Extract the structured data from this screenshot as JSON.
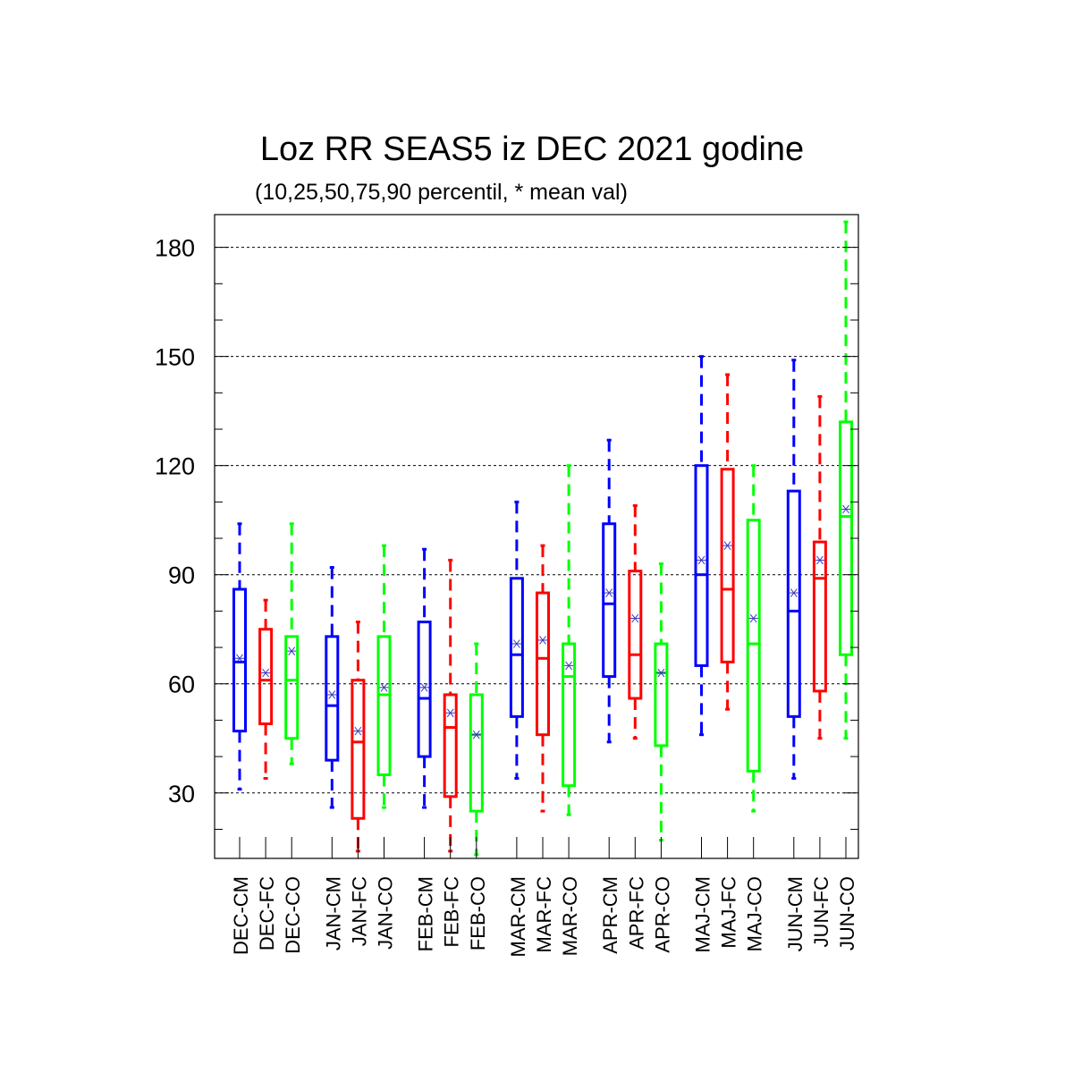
{
  "chart_data": {
    "type": "box",
    "title": "Loz RR SEAS5 iz DEC 2021 godine",
    "subtitle": "(10,25,50,75,90 percentil, * mean val)",
    "xlabel": "",
    "ylabel": "",
    "ylim": [
      12,
      189
    ],
    "yticks": [
      30,
      60,
      90,
      120,
      150,
      180
    ],
    "grid": true,
    "series_colors": {
      "CM": "#0000ff",
      "FC": "#ff0000",
      "CO": "#00ff00"
    },
    "boxes": [
      {
        "label": "DEC-CM",
        "series": "CM",
        "p10": 31,
        "p25": 47,
        "p50": 66,
        "p75": 86,
        "p90": 104,
        "mean": 67
      },
      {
        "label": "DEC-FC",
        "series": "FC",
        "p10": 34,
        "p25": 49,
        "p50": 61,
        "p75": 75,
        "p90": 83,
        "mean": 63
      },
      {
        "label": "DEC-CO",
        "series": "CO",
        "p10": 38,
        "p25": 45,
        "p50": 61,
        "p75": 73,
        "p90": 104,
        "mean": 69
      },
      {
        "label": "JAN-CM",
        "series": "CM",
        "p10": 26,
        "p25": 39,
        "p50": 54,
        "p75": 73,
        "p90": 92,
        "mean": 57
      },
      {
        "label": "JAN-FC",
        "series": "FC",
        "p10": 14,
        "p25": 23,
        "p50": 44,
        "p75": 61,
        "p90": 77,
        "mean": 47
      },
      {
        "label": "JAN-CO",
        "series": "CO",
        "p10": 26,
        "p25": 35,
        "p50": 57,
        "p75": 73,
        "p90": 98,
        "mean": 59
      },
      {
        "label": "FEB-CM",
        "series": "CM",
        "p10": 26,
        "p25": 40,
        "p50": 56,
        "p75": 77,
        "p90": 97,
        "mean": 59
      },
      {
        "label": "FEB-FC",
        "series": "FC",
        "p10": 14,
        "p25": 29,
        "p50": 48,
        "p75": 57,
        "p90": 94,
        "mean": 52
      },
      {
        "label": "FEB-CO",
        "series": "CO",
        "p10": 13,
        "p25": 25,
        "p50": 46,
        "p75": 57,
        "p90": 71,
        "mean": 46
      },
      {
        "label": "MAR-CM",
        "series": "CM",
        "p10": 34,
        "p25": 51,
        "p50": 68,
        "p75": 89,
        "p90": 110,
        "mean": 71
      },
      {
        "label": "MAR-FC",
        "series": "FC",
        "p10": 25,
        "p25": 46,
        "p50": 67,
        "p75": 85,
        "p90": 98,
        "mean": 72
      },
      {
        "label": "MAR-CO",
        "series": "CO",
        "p10": 24,
        "p25": 32,
        "p50": 62,
        "p75": 71,
        "p90": 120,
        "mean": 65
      },
      {
        "label": "APR-CM",
        "series": "CM",
        "p10": 44,
        "p25": 62,
        "p50": 82,
        "p75": 104,
        "p90": 127,
        "mean": 85
      },
      {
        "label": "APR-FC",
        "series": "FC",
        "p10": 45,
        "p25": 56,
        "p50": 68,
        "p75": 91,
        "p90": 109,
        "mean": 78
      },
      {
        "label": "APR-CO",
        "series": "CO",
        "p10": 17,
        "p25": 43,
        "p50": 63,
        "p75": 71,
        "p90": 93,
        "mean": 63
      },
      {
        "label": "MAJ-CM",
        "series": "CM",
        "p10": 46,
        "p25": 65,
        "p50": 90,
        "p75": 120,
        "p90": 150,
        "mean": 94
      },
      {
        "label": "MAJ-FC",
        "series": "FC",
        "p10": 53,
        "p25": 66,
        "p50": 86,
        "p75": 119,
        "p90": 145,
        "mean": 98
      },
      {
        "label": "MAJ-CO",
        "series": "CO",
        "p10": 25,
        "p25": 36,
        "p50": 71,
        "p75": 105,
        "p90": 120,
        "mean": 78
      },
      {
        "label": "JUN-CM",
        "series": "CM",
        "p10": 34,
        "p25": 51,
        "p50": 80,
        "p75": 113,
        "p90": 149,
        "mean": 85
      },
      {
        "label": "JUN-FC",
        "series": "FC",
        "p10": 45,
        "p25": 58,
        "p50": 89,
        "p75": 99,
        "p90": 139,
        "mean": 94
      },
      {
        "label": "JUN-CO",
        "series": "CO",
        "p10": 45,
        "p25": 68,
        "p50": 106,
        "p75": 132,
        "p90": 187,
        "mean": 108
      }
    ]
  }
}
